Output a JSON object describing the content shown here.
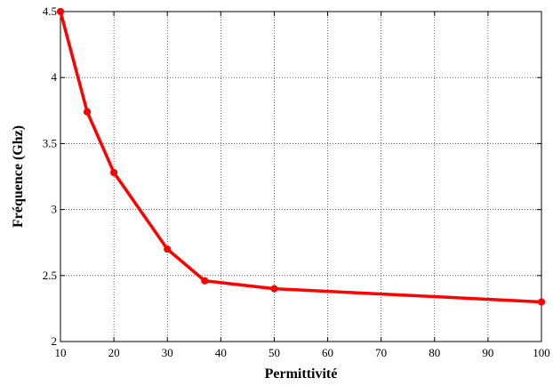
{
  "chart_data": {
    "type": "line",
    "title": "",
    "xlabel": "Permittivité",
    "ylabel": "Fréquence (Ghz)",
    "xlim": [
      10,
      100
    ],
    "ylim": [
      2,
      4.5
    ],
    "x_ticks": [
      "10",
      "20",
      "30",
      "40",
      "50",
      "60",
      "70",
      "80",
      "90",
      "100"
    ],
    "y_ticks": [
      "2",
      "2.5",
      "3",
      "3.5",
      "4",
      "4.5"
    ],
    "grid": true,
    "series": [
      {
        "color": "#ff0000",
        "marker": "circle",
        "x": [
          10,
          15,
          20,
          30,
          37,
          50,
          100
        ],
        "y": [
          4.5,
          3.74,
          3.28,
          2.7,
          2.46,
          2.4,
          2.3
        ]
      }
    ]
  }
}
